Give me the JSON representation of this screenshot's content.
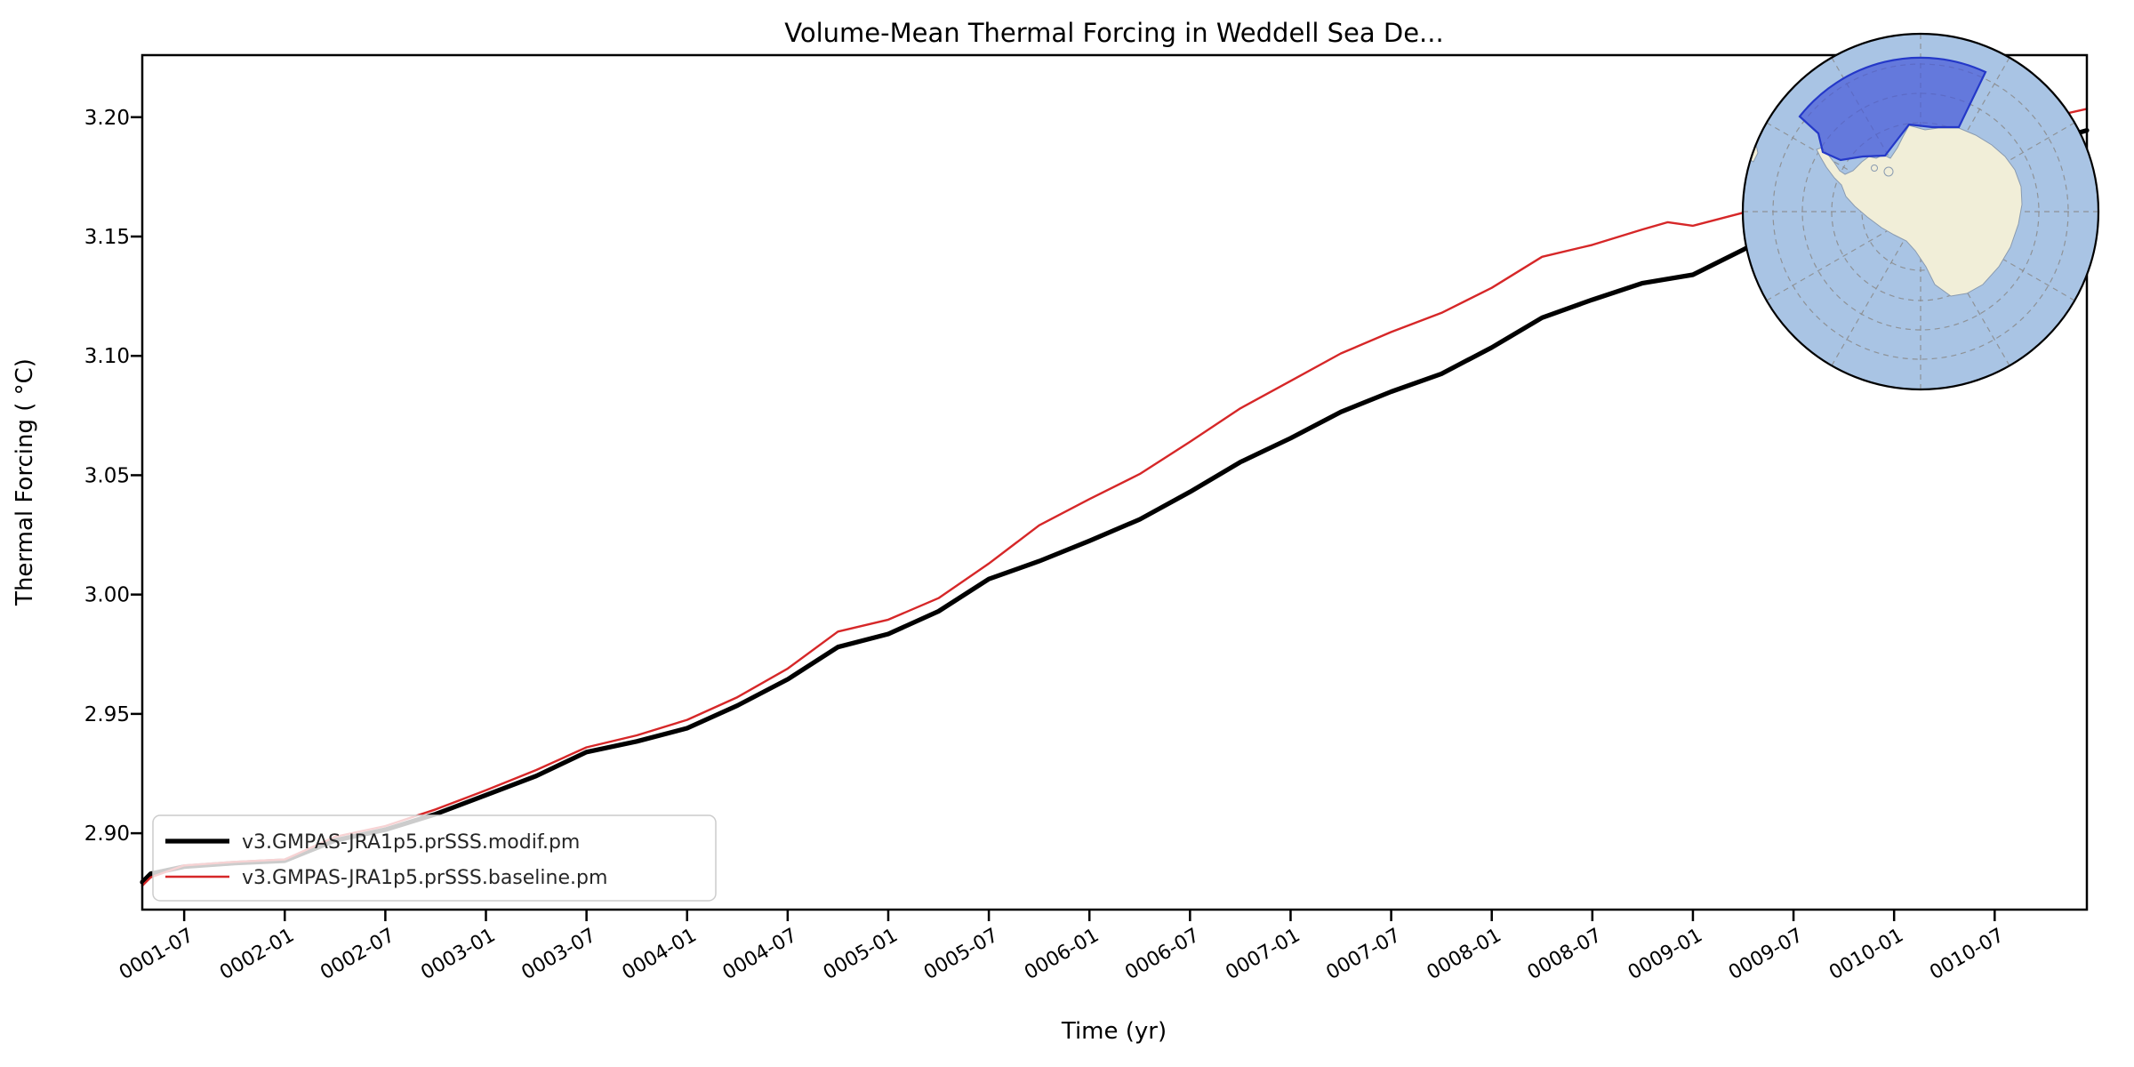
{
  "title": "Volume-Mean Thermal Forcing in Weddell Sea De...",
  "chart_data": {
    "type": "line",
    "title": "Volume-Mean Thermal Forcing in Weddell Sea De...",
    "xlabel": "Time (yr)",
    "ylabel": "Thermal Forcing ( °C)",
    "x_unit": "months since 0001-01",
    "xlim": [
      3.5,
      119.5
    ],
    "ylim": [
      2.868,
      3.226
    ],
    "grid": false,
    "legend_position": "lower left",
    "yticks": [
      2.9,
      2.95,
      3.0,
      3.05,
      3.1,
      3.15,
      3.2
    ],
    "xtick_t": [
      6,
      12,
      18,
      24,
      30,
      36,
      42,
      48,
      54,
      60,
      66,
      72,
      78,
      84,
      90,
      96,
      102,
      108,
      114
    ],
    "xtick_labels": [
      "0001-07",
      "0002-01",
      "0002-07",
      "0003-01",
      "0003-07",
      "0004-01",
      "0004-07",
      "0005-01",
      "0005-07",
      "0006-01",
      "0006-07",
      "0007-01",
      "0007-07",
      "0008-01",
      "0008-07",
      "0009-01",
      "0009-07",
      "0010-01",
      "0010-07"
    ],
    "series": [
      {
        "name": "v3.GMPAS-JRA1p5.prSSS.modif.pm",
        "color": "#000000",
        "linewidth": 5.2,
        "x": [
          3.5,
          4,
          6,
          9,
          12,
          15,
          18,
          21,
          24,
          27,
          30,
          33,
          36,
          39,
          42,
          45,
          48,
          51,
          54,
          57,
          60,
          63,
          66,
          69,
          72,
          75,
          78,
          81,
          84,
          87,
          90,
          93,
          96,
          99,
          102,
          105,
          108,
          111,
          114,
          117,
          119.5
        ],
        "y": [
          2.8795,
          2.883,
          2.886,
          2.8875,
          2.8885,
          2.897,
          2.9015,
          2.908,
          2.916,
          2.924,
          2.934,
          2.9385,
          2.944,
          2.9535,
          2.9645,
          2.978,
          2.9835,
          2.993,
          3.0065,
          3.014,
          3.0225,
          3.0315,
          3.043,
          3.0555,
          3.0655,
          3.0765,
          3.085,
          3.0925,
          3.1035,
          3.116,
          3.1235,
          3.1305,
          3.134,
          3.1445,
          3.1555,
          3.1655,
          3.172,
          3.179,
          3.1845,
          3.1895,
          3.1945
        ]
      },
      {
        "name": "v3.GMPAS-JRA1p5.prSSS.baseline.pm",
        "color": "#d62728",
        "linewidth": 2.4,
        "x": [
          3.5,
          4,
          6,
          9,
          12,
          15,
          18,
          21,
          24,
          27,
          30,
          33,
          36,
          39,
          42,
          45,
          48,
          51,
          54,
          57,
          60,
          63,
          66,
          69,
          72,
          75,
          78,
          81,
          84,
          87,
          90,
          93,
          94.5,
          96,
          99,
          102,
          105,
          108,
          111,
          114,
          117,
          119.5
        ],
        "y": [
          2.878,
          2.8815,
          2.8865,
          2.888,
          2.889,
          2.8985,
          2.903,
          2.91,
          2.918,
          2.9265,
          2.936,
          2.941,
          2.9475,
          2.957,
          2.969,
          2.9845,
          2.9895,
          2.9985,
          3.013,
          3.029,
          3.04,
          3.0505,
          3.064,
          3.078,
          3.0895,
          3.101,
          3.11,
          3.118,
          3.1285,
          3.1415,
          3.1465,
          3.153,
          3.156,
          3.1545,
          3.16,
          3.167,
          3.1745,
          3.1815,
          3.1885,
          3.1945,
          3.1995,
          3.2035
        ]
      }
    ]
  },
  "inset_map": {
    "name": "south-polar-stereographic-inset",
    "description": "Antarctic polar map with Weddell Sea deep region highlighted",
    "ocean_color": "#a9c4e4",
    "land_color": "#f1eed8",
    "region_fill": "#4a5cd8",
    "region_fill_opacity": "0.72",
    "region_border": "#2438c8",
    "graticule_color": "#8a8a8a"
  }
}
